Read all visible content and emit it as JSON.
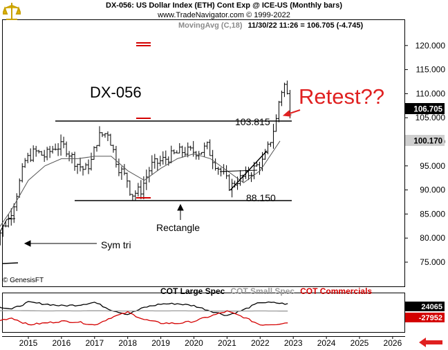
{
  "header": {
    "title": "DX-056:  US Dollar Index (ETH) Cont Exp @ ICE-US  (Monthly bars)",
    "site": "www.TradeNavigator.com © 1999-2022",
    "ma_label": "MovingAvg (C,18)",
    "stamp": "11/30/22 11:26 = 106.705 (-4.745)"
  },
  "copyright": "© GenesisFT",
  "annotations": {
    "symbol": "DX-056",
    "retest": "Retest??",
    "rectangle": "Rectangle",
    "sym_tri": "Sym tri",
    "resistance": "103.815",
    "support": "88.150"
  },
  "cot_legend": {
    "large": "COT Large Spec",
    "small": "COT Small Spec",
    "commercials": "COT Commercials"
  },
  "colors": {
    "price": "#000000",
    "ma": "#555555",
    "large_spec": "#000000",
    "small_spec": "#9a9a9a",
    "commercials": "#d40000",
    "current_box": "#000000",
    "ma_box": "#cfcfcf",
    "arrow_red": "#e02020"
  },
  "chart_data": [
    {
      "type": "line",
      "subtype": "ohlc-bars",
      "title": "DX-056:  US Dollar Index (ETH) Cont Exp @ ICE-US  (Monthly bars)",
      "ylim": [
        70,
        122
      ],
      "y_ticks": [
        "75.000",
        "80.000",
        "85.000",
        "90.000",
        "95.000",
        "100.000",
        "105.000",
        "110.000",
        "115.000",
        "120.000"
      ],
      "x_ticks": [
        "2015",
        "2016",
        "2017",
        "2018",
        "2019",
        "2020",
        "2021",
        "2022",
        "2023",
        "2024",
        "2025",
        "2026"
      ],
      "current_value": "106.705",
      "ma_value": "100.170",
      "series": [
        {
          "name": "MovingAvg (C,18)",
          "x": [
            2014.0,
            2014.5,
            2015.0,
            2015.5,
            2016.0,
            2016.5,
            2017.0,
            2017.5,
            2018.0,
            2018.5,
            2019.0,
            2019.5,
            2020.0,
            2020.5,
            2021.0,
            2021.5,
            2022.0,
            2022.6
          ],
          "values": [
            81,
            86,
            92,
            95,
            96.5,
            96.5,
            97,
            97,
            94,
            92,
            94.5,
            96.5,
            97.5,
            96.5,
            94,
            91.5,
            94,
            100.17
          ]
        },
        {
          "name": "Close",
          "x": [
            2013.0,
            2013.6,
            2014.1,
            2014.4,
            2014.6,
            2014.9,
            2015.2,
            2015.5,
            2015.8,
            2016.1,
            2016.4,
            2016.7,
            2016.9,
            2017.1,
            2017.4,
            2017.7,
            2018.0,
            2018.1,
            2018.4,
            2018.7,
            2019.0,
            2019.3,
            2019.6,
            2019.9,
            2020.2,
            2020.4,
            2020.6,
            2020.9,
            2021.1,
            2021.3,
            2021.6,
            2021.9,
            2022.1,
            2022.3,
            2022.5,
            2022.6,
            2022.75,
            2022.9
          ],
          "values": [
            80.5,
            80.0,
            80.7,
            84,
            88,
            96,
            98,
            97,
            99,
            99,
            96,
            94,
            96,
            101,
            102,
            95,
            92,
            89,
            90,
            95,
            96,
            97,
            98,
            98,
            98,
            99,
            96,
            93,
            90.5,
            92,
            93,
            95,
            96,
            100,
            105,
            110,
            112,
            106.7
          ]
        }
      ],
      "levels": [
        {
          "label": "103.815",
          "value": 103.815
        },
        {
          "label": "88.150",
          "value": 88.15
        }
      ]
    },
    {
      "type": "line",
      "title": "",
      "values_labels": [
        "24065",
        "-27952"
      ],
      "series": [
        {
          "name": "COT Large Spec",
          "x": [
            2014.0,
            2014.5,
            2015.0,
            2015.5,
            2016.0,
            2016.5,
            2017.0,
            2017.5,
            2018.0,
            2018.5,
            2019.0,
            2019.5,
            2020.0,
            2020.5,
            2021.0,
            2021.5,
            2022.0,
            2022.5,
            2022.9
          ],
          "values": [
            20000,
            10000,
            30000,
            25000,
            20000,
            22000,
            30000,
            8000,
            -5000,
            15000,
            25000,
            26000,
            20000,
            5000,
            -8000,
            8000,
            30000,
            28000,
            24065
          ]
        },
        {
          "name": "COT Small Spec",
          "x": [
            2014.0,
            2014.5,
            2015.0,
            2015.5,
            2016.0,
            2016.5,
            2017.0,
            2017.5,
            2018.0,
            2018.5,
            2019.0,
            2019.5,
            2020.0,
            2020.5,
            2021.0,
            2021.5,
            2022.0,
            2022.5,
            2022.9
          ],
          "values": [
            5000,
            6000,
            5500,
            5000,
            5200,
            5000,
            5500,
            5000,
            4800,
            5200,
            5000,
            5200,
            5000,
            4800,
            4500,
            4800,
            5000,
            4700,
            4600
          ]
        },
        {
          "name": "COT Commercials",
          "x": [
            2014.0,
            2014.5,
            2015.0,
            2015.5,
            2016.0,
            2016.5,
            2017.0,
            2017.5,
            2018.0,
            2018.5,
            2019.0,
            2019.5,
            2020.0,
            2020.5,
            2021.0,
            2021.5,
            2022.0,
            2022.5,
            2022.9
          ],
          "values": [
            -25000,
            -15000,
            -35000,
            -30000,
            -25000,
            -27000,
            -36000,
            -14000,
            1000,
            -20000,
            -30000,
            -31000,
            -25000,
            -10000,
            4000,
            -13000,
            -35000,
            -33000,
            -27952
          ]
        }
      ]
    }
  ]
}
